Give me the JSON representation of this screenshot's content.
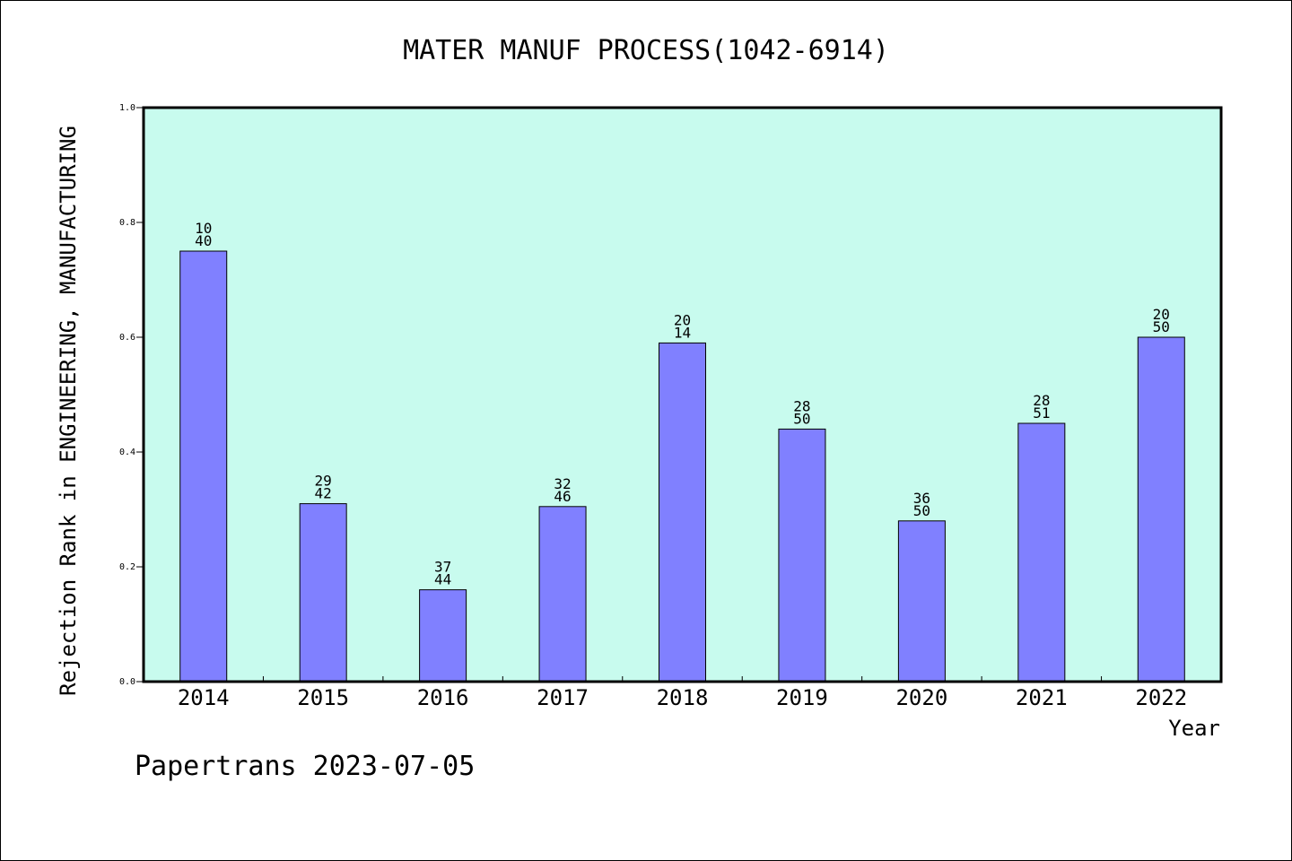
{
  "chart_data": {
    "type": "bar",
    "title": "MATER MANUF PROCESS(1042-6914)",
    "xlabel": "Year",
    "ylabel": "Rejection Rank in ENGINEERING, MANUFACTURING",
    "ylim": [
      0,
      1.0
    ],
    "yticks": [
      "0.0",
      "0.2",
      "0.4",
      "0.6",
      "0.8",
      "1.0"
    ],
    "categories": [
      "2014",
      "2015",
      "2016",
      "2017",
      "2018",
      "2019",
      "2020",
      "2021",
      "2022"
    ],
    "values": [
      0.75,
      0.31,
      0.16,
      0.305,
      0.59,
      0.44,
      0.28,
      0.45,
      0.6
    ],
    "data_labels": [
      [
        "10",
        "40"
      ],
      [
        "29",
        "42"
      ],
      [
        "37",
        "44"
      ],
      [
        "32",
        "46"
      ],
      [
        "20",
        "14"
      ],
      [
        "28",
        "50"
      ],
      [
        "36",
        "50"
      ],
      [
        "28",
        "51"
      ],
      [
        "20",
        "50"
      ]
    ],
    "grid": false,
    "plot_background": "#c8fbee",
    "bar_color": "#8080ff"
  },
  "footer": "Papertrans 2023-07-05"
}
